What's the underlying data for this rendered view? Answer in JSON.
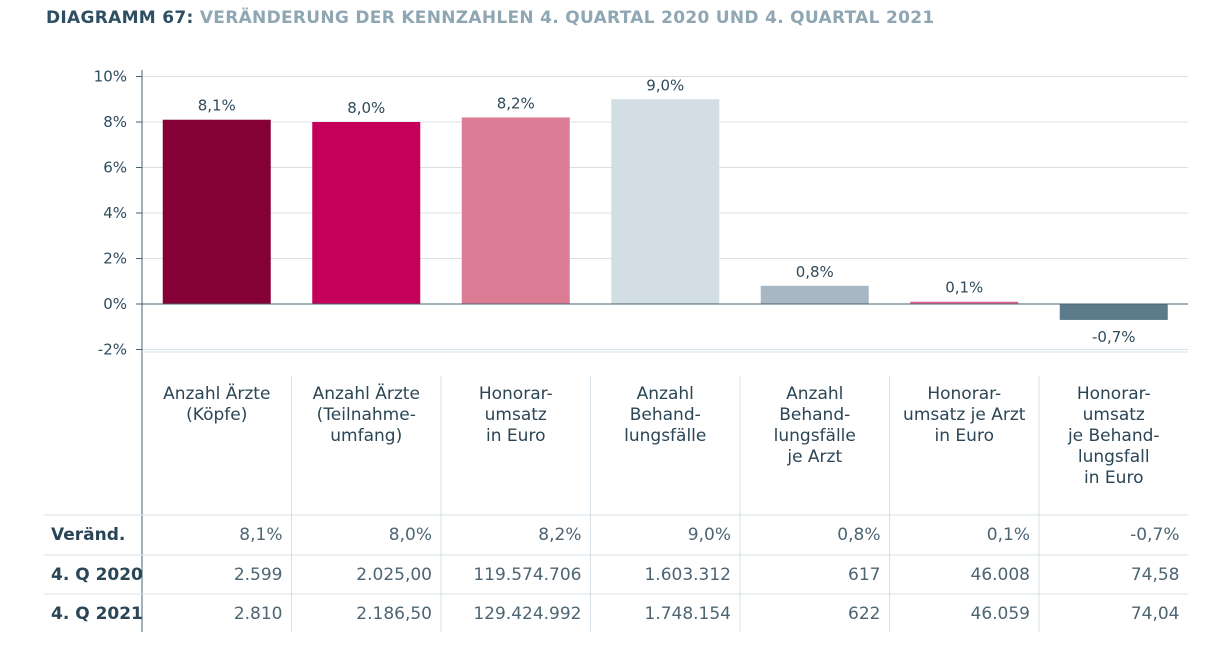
{
  "title": {
    "lead": "DIAGRAMM 67:",
    "rest": "VERÄNDERUNG DER KENNZAHLEN 4. QUARTAL 2020 UND 4. QUARTAL 2021"
  },
  "colors": [
    "#850035",
    "#c5005a",
    "#d97c94",
    "#d2dde4",
    "#a7b8c3",
    "#e0628f",
    "#5b7a8a"
  ],
  "chart_data": {
    "type": "bar",
    "title": "VERÄNDERUNG DER KENNZAHLEN 4. QUARTAL 2020 UND 4. QUARTAL 2021",
    "categories": [
      "Anzahl Ärzte\n(Köpfe)",
      "Anzahl Ärzte\n(Teilnahme-\numfang)",
      "Honorar-\numsatz\nin Euro",
      "Anzahl\nBehand-\nlungsfälle",
      "Anzahl\nBehand-\nlungsfälle\nje Arzt",
      "Honorar-\numsatz je Arzt\nin Euro",
      "Honorar-\numsatz\nje Behand-\nlungsfall\nin Euro"
    ],
    "values": [
      8.1,
      8.0,
      8.2,
      9.0,
      0.8,
      0.1,
      -0.7
    ],
    "value_labels": [
      "8,1%",
      "8,0%",
      "8,2%",
      "9,0%",
      "0,8%",
      "0,1%",
      "-0,7%"
    ],
    "ylim": [
      -2,
      10
    ],
    "yticks": [
      10,
      8,
      6,
      4,
      2,
      0,
      -2
    ],
    "ytick_labels": [
      "10%",
      "8%",
      "6%",
      "4%",
      "2%",
      "0%",
      "-2%"
    ],
    "grid": true
  },
  "table": {
    "rows": [
      {
        "label": "Veränd.",
        "values": [
          "8,1%",
          "8,0%",
          "8,2%",
          "9,0%",
          "0,8%",
          "0,1%",
          "-0,7%"
        ]
      },
      {
        "label": "4. Q 2020",
        "values": [
          "2.599",
          "2.025,00",
          "119.574.706",
          "1.603.312",
          "617",
          "46.008",
          "74,58"
        ]
      },
      {
        "label": "4. Q 2021",
        "values": [
          "2.810",
          "2.186,50",
          "129.424.992",
          "1.748.154",
          "622",
          "46.059",
          "74,04"
        ]
      }
    ]
  }
}
